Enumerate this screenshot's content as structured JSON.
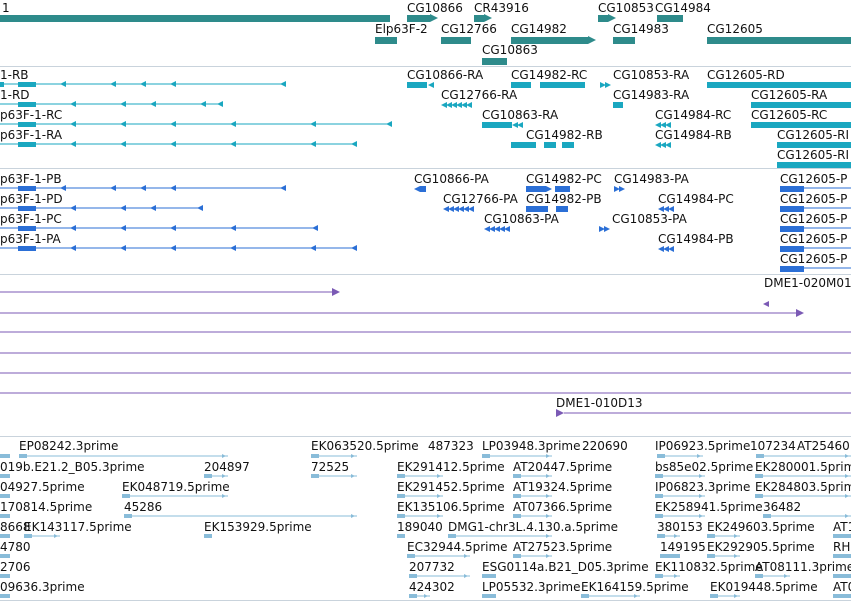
{
  "colors": {
    "gene": "#2e8b8b",
    "rna": "#1aa7c0",
    "protein": "#2b6fd6",
    "clone": "#7b5ab5",
    "est": "#89bcd9",
    "separator": "#c9d3dc"
  },
  "tracks": {
    "genes": {
      "labels": [
        "1",
        "CG10866",
        "CR43916",
        "CG10853",
        "CG14984",
        "Elp63F-2",
        "CG12766",
        "CG14982",
        "CG14983",
        "CG12605",
        "CG10863"
      ]
    },
    "transcripts": {
      "labels": [
        "1-RB",
        "CG10866-RA",
        "CG14982-RC",
        "CG10853-RA",
        "CG12605-RD",
        "1-RD",
        "CG12766-RA",
        "CG14983-RA",
        "CG12605-RA",
        "p63F-1-RC",
        "CG10863-RA",
        "CG14984-RC",
        "CG12605-RC",
        "p63F-1-RA",
        "CG14982-RB",
        "CG14984-RB",
        "CG12605-RI",
        "CG12605-RI"
      ]
    },
    "proteins": {
      "labels": [
        "p63F-1-PB",
        "CG10866-PA",
        "CG14982-PC",
        "CG14983-PA",
        "CG12605-P",
        "p63F-1-PD",
        "CG12766-PA",
        "CG14982-PB",
        "CG14984-PC",
        "CG12605-P",
        "p63F-1-PC",
        "CG10863-PA",
        "CG10853-PA",
        "CG12605-P",
        "p63F-1-PA",
        "CG14984-PB",
        "CG12605-P",
        "CG12605-P"
      ]
    },
    "clones": {
      "labels": [
        "DME1-020M01",
        "DME1-010D13"
      ]
    },
    "ests": {
      "labels": [
        "EP08242.3prime",
        "EK063520.5prime",
        "487323",
        "LP03948.3prime",
        "220690",
        "IP06923.5prime",
        "107234",
        "AT25460",
        "019b.E21.2_B05.3prime",
        "204897",
        "72525",
        "EK291412.5prime",
        "AT20447.5prime",
        "bs85e02.5prime",
        "EK280001.5prime",
        "04927.5prime",
        "EK048719.5prime",
        "EK291452.5prime",
        "AT19324.5prime",
        "IP06823.3prime",
        "EK284803.5prime",
        "170814.5prime",
        "45286",
        "EK135106.5prime",
        "AT07366.5prime",
        "EK258941.5prime",
        "36482",
        "8668",
        "EK143117.5prime",
        "EK153929.5prime",
        "189040",
        "DMG1-chr3L.4.130.a.5prime",
        "380153",
        "EK249603.5prime",
        "AT1",
        "4780",
        "EC32944.5prime",
        "AT27523.5prime",
        "149195",
        "EK292905.5prime",
        "RH",
        "2706",
        "207732",
        "ESG0114a.B21_D05.3prime",
        "EK110832.5prime",
        "AT08111.3prime",
        "09636.3prime",
        "424302",
        "LP05532.3prime",
        "EK164159.5prime",
        "EK019448.5prime",
        "AT0"
      ]
    }
  }
}
